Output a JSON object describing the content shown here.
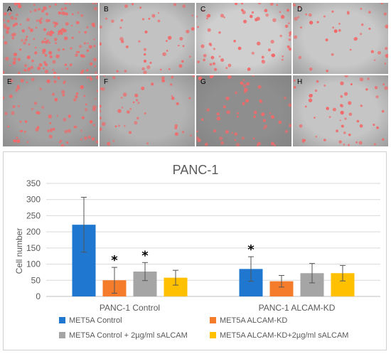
{
  "micrographs": {
    "panels": [
      {
        "letter": "A",
        "bg": "#a9a9a9",
        "density": 170
      },
      {
        "letter": "B",
        "bg": "#c2c2c2",
        "density": 45
      },
      {
        "letter": "C",
        "bg": "#cfcfcf",
        "density": 65
      },
      {
        "letter": "D",
        "bg": "#c8c8c8",
        "density": 40
      },
      {
        "letter": "E",
        "bg": "#a3a3a3",
        "density": 85
      },
      {
        "letter": "F",
        "bg": "#b3b3b3",
        "density": 45
      },
      {
        "letter": "G",
        "bg": "#8e8e8e",
        "density": 60
      },
      {
        "letter": "H",
        "bg": "#c5c5c5",
        "density": 55
      }
    ],
    "cell_color": "#f06a6a"
  },
  "chart_data": {
    "type": "bar",
    "title": "PANC-1",
    "ylabel": "Cell number",
    "xlabel": "",
    "ylim": [
      0,
      350
    ],
    "yticks": [
      0,
      50,
      100,
      150,
      200,
      250,
      300,
      350
    ],
    "grid": true,
    "legend_position": "bottom",
    "categories": [
      "PANC-1 Control",
      "PANC-1 ALCAM-KD"
    ],
    "series": [
      {
        "name": "MET5A Control",
        "color": "#1f77d0",
        "values": [
          222,
          85
        ],
        "errors": [
          85,
          38
        ]
      },
      {
        "name": "MET5A ALCAM-KD",
        "color": "#f47c2a",
        "values": [
          50,
          47
        ],
        "errors": [
          40,
          18
        ]
      },
      {
        "name": "MET5A Control + 2µg/ml sALCAM",
        "color": "#a5a5a5",
        "values": [
          77,
          72
        ],
        "errors": [
          28,
          30
        ]
      },
      {
        "name": "MET5A ALCAM-KD+2µg/ml sALCAM",
        "color": "#ffc000",
        "values": [
          58,
          72
        ],
        "errors": [
          23,
          24
        ]
      }
    ],
    "annotations": [
      {
        "text": "*",
        "category": 0,
        "series": 1
      },
      {
        "text": "*",
        "category": 0,
        "series": 2
      },
      {
        "text": "*",
        "category": 1,
        "series": 0
      }
    ]
  }
}
